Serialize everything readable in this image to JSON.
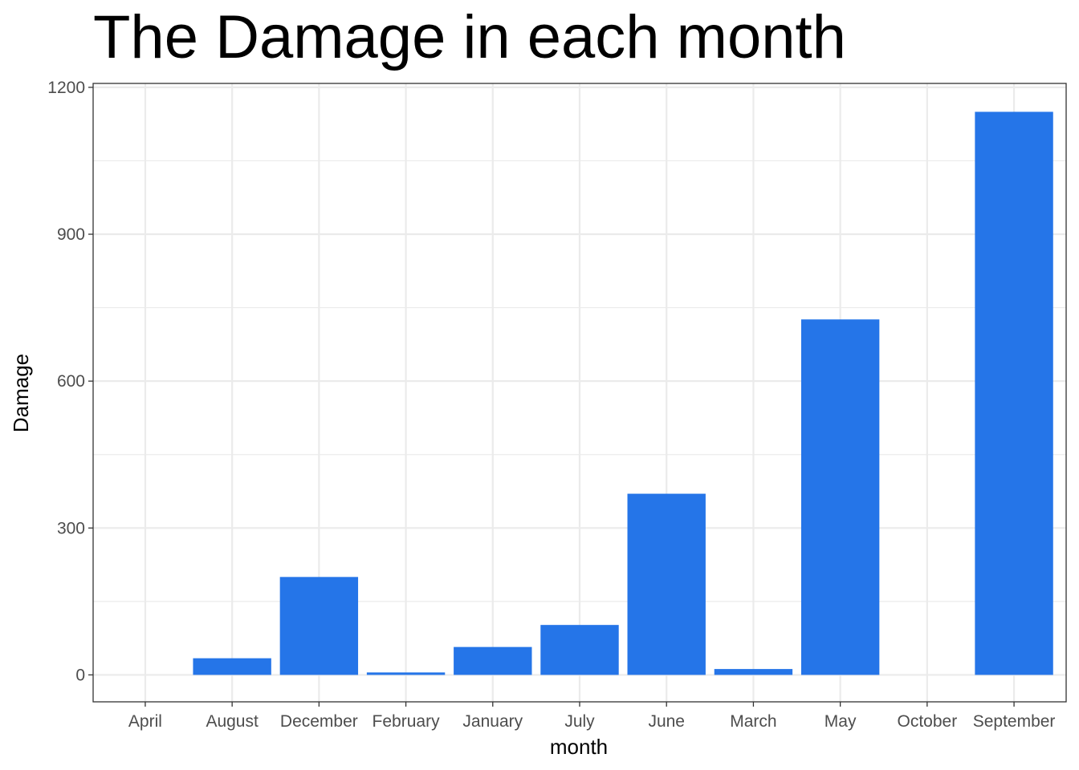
{
  "chart_data": {
    "type": "bar",
    "title": "The Damage in each month",
    "xlabel": "month",
    "ylabel": "Damage",
    "categories": [
      "April",
      "August",
      "December",
      "February",
      "January",
      "July",
      "June",
      "March",
      "May",
      "October",
      "September"
    ],
    "values": [
      0,
      34,
      200,
      5,
      57,
      102,
      370,
      12,
      726,
      0,
      1150
    ],
    "ylim": [
      -55,
      1208
    ],
    "yticks": [
      0,
      300,
      600,
      900,
      1200
    ],
    "yticks_minor": [
      150,
      450,
      750,
      1050
    ],
    "grid": true,
    "bar_color": "#2575E8",
    "gridline_color": "#EBEBEB",
    "panel_border_color": "#333333"
  }
}
